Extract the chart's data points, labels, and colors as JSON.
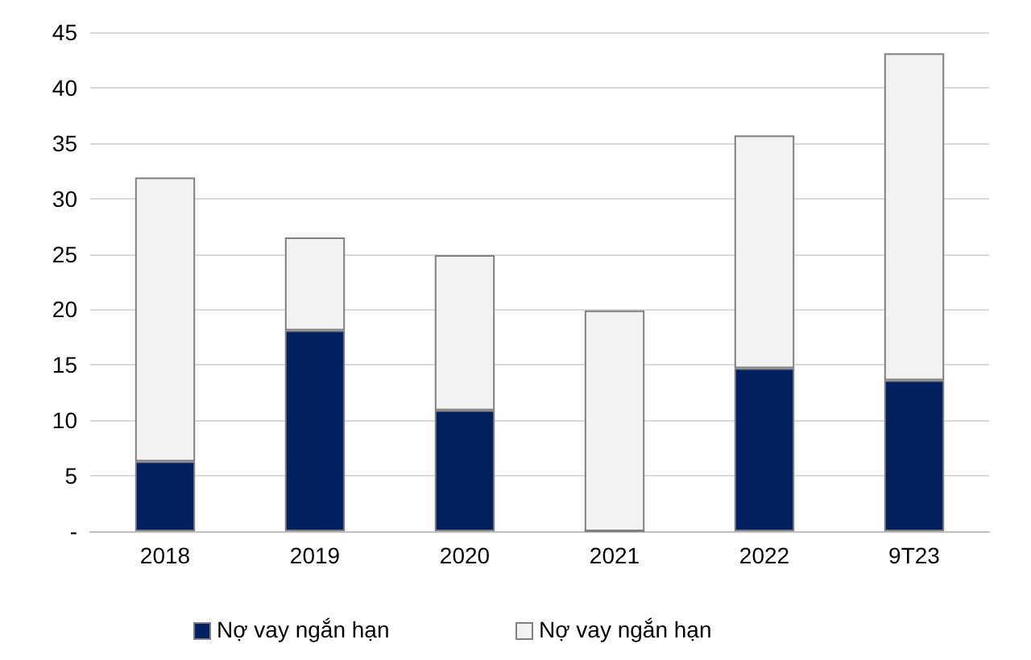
{
  "chart_data": {
    "type": "bar",
    "stacked": true,
    "categories": [
      "2018",
      "2019",
      "2020",
      "2021",
      "2022",
      "9T23"
    ],
    "series": [
      {
        "name": "Nợ vay ngắn hạn",
        "color": "#002060",
        "values": [
          6.3,
          18.1,
          10.9,
          0,
          14.7,
          13.6
        ]
      },
      {
        "name": "Nợ vay ngắn hạn",
        "color": "#f2f2f2",
        "values": [
          25.6,
          8.4,
          14.0,
          19.9,
          21.0,
          29.5
        ]
      }
    ],
    "ylim": [
      0,
      45
    ],
    "yticks": [
      {
        "value": 0,
        "label": "-"
      },
      5,
      10,
      15,
      20,
      25,
      30,
      35,
      40,
      45
    ],
    "grid": "y",
    "legend": "bottom"
  }
}
